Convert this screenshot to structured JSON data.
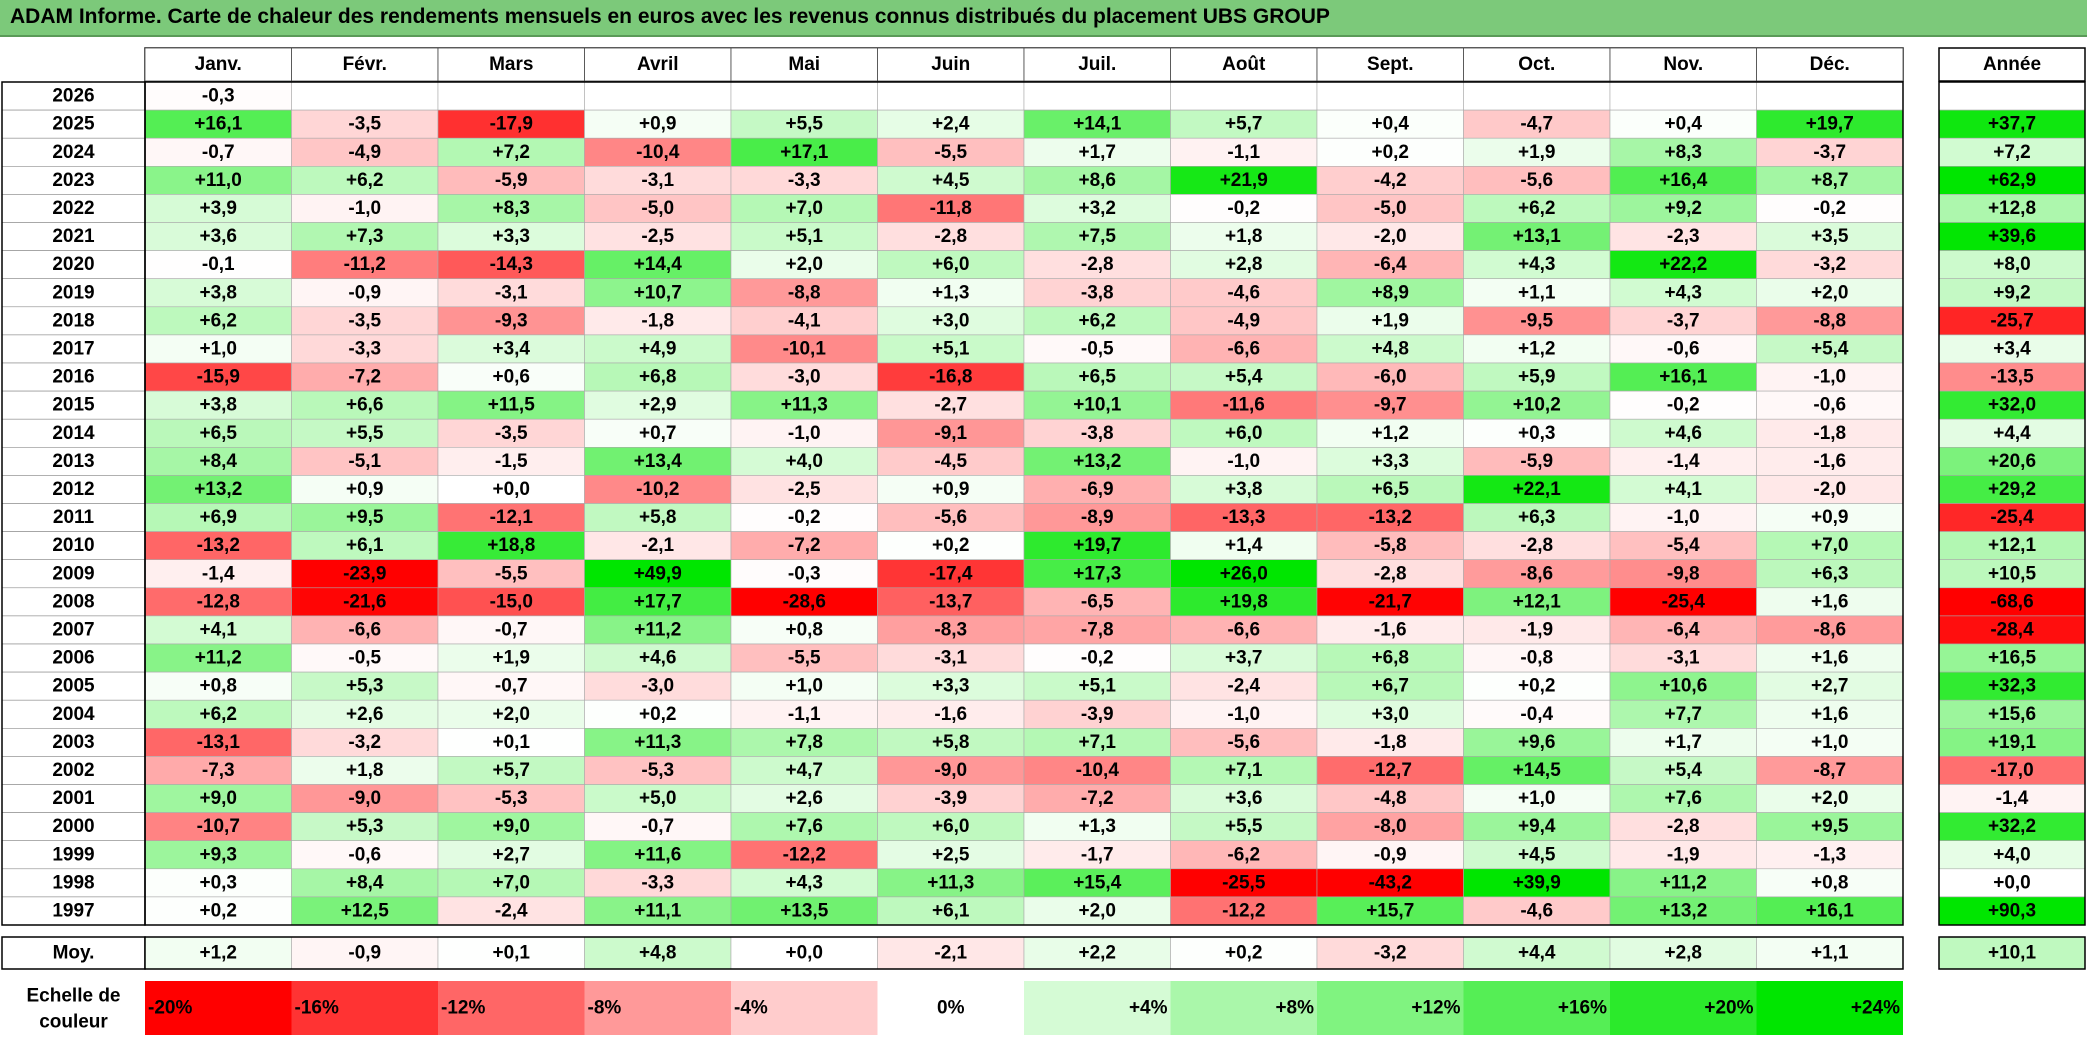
{
  "title": "ADAM Informe. Carte de chaleur des rendements mensuels en euros avec les revenus connus distribués du placement UBS GROUP",
  "colors": {
    "negative": "#ff0000",
    "neutral": "#ffffff",
    "positive": "#00e600",
    "title_bg": "#7cc97a"
  },
  "chart_data": {
    "type": "heatmap",
    "months": [
      "Janv.",
      "Févr.",
      "Mars",
      "Avril",
      "Mai",
      "Juin",
      "Juil.",
      "Août",
      "Sept.",
      "Oct.",
      "Nov.",
      "Déc."
    ],
    "year_header": "Année",
    "avg_label": "Moy.",
    "scale_label_line1": "Echelle de",
    "scale_label_line2": "couleur",
    "rows": [
      {
        "year": "2026",
        "m": [
          "-0,3",
          "",
          "",
          "",
          "",
          "",
          "",
          "",
          "",
          "",
          "",
          ""
        ],
        "y": ""
      },
      {
        "year": "2025",
        "m": [
          "+16,1",
          "-3,5",
          "-17,9",
          "+0,9",
          "+5,5",
          "+2,4",
          "+14,1",
          "+5,7",
          "+0,4",
          "-4,7",
          "+0,4",
          "+19,7"
        ],
        "y": "+37,7"
      },
      {
        "year": "2024",
        "m": [
          "-0,7",
          "-4,9",
          "+7,2",
          "-10,4",
          "+17,1",
          "-5,5",
          "+1,7",
          "-1,1",
          "+0,2",
          "+1,9",
          "+8,3",
          "-3,7"
        ],
        "y": "+7,2"
      },
      {
        "year": "2023",
        "m": [
          "+11,0",
          "+6,2",
          "-5,9",
          "-3,1",
          "-3,3",
          "+4,5",
          "+8,6",
          "+21,9",
          "-4,2",
          "-5,6",
          "+16,4",
          "+8,7"
        ],
        "y": "+62,9"
      },
      {
        "year": "2022",
        "m": [
          "+3,9",
          "-1,0",
          "+8,3",
          "-5,0",
          "+7,0",
          "-11,8",
          "+3,2",
          "-0,2",
          "-5,0",
          "+6,2",
          "+9,2",
          "-0,2"
        ],
        "y": "+12,8"
      },
      {
        "year": "2021",
        "m": [
          "+3,6",
          "+7,3",
          "+3,3",
          "-2,5",
          "+5,1",
          "-2,8",
          "+7,5",
          "+1,8",
          "-2,0",
          "+13,1",
          "-2,3",
          "+3,5"
        ],
        "y": "+39,6"
      },
      {
        "year": "2020",
        "m": [
          "-0,1",
          "-11,2",
          "-14,3",
          "+14,4",
          "+2,0",
          "+6,0",
          "-2,8",
          "+2,8",
          "-6,4",
          "+4,3",
          "+22,2",
          "-3,2"
        ],
        "y": "+8,0"
      },
      {
        "year": "2019",
        "m": [
          "+3,8",
          "-0,9",
          "-3,1",
          "+10,7",
          "-8,8",
          "+1,3",
          "-3,8",
          "-4,6",
          "+8,9",
          "+1,1",
          "+4,3",
          "+2,0"
        ],
        "y": "+9,2"
      },
      {
        "year": "2018",
        "m": [
          "+6,2",
          "-3,5",
          "-9,3",
          "-1,8",
          "-4,1",
          "+3,0",
          "+6,2",
          "-4,9",
          "+1,9",
          "-9,5",
          "-3,7",
          "-8,8"
        ],
        "y": "-25,7"
      },
      {
        "year": "2017",
        "m": [
          "+1,0",
          "-3,3",
          "+3,4",
          "+4,9",
          "-10,1",
          "+5,1",
          "-0,5",
          "-6,6",
          "+4,8",
          "+1,2",
          "-0,6",
          "+5,4"
        ],
        "y": "+3,4"
      },
      {
        "year": "2016",
        "m": [
          "-15,9",
          "-7,2",
          "+0,6",
          "+6,8",
          "-3,0",
          "-16,8",
          "+6,5",
          "+5,4",
          "-6,0",
          "+5,9",
          "+16,1",
          "-1,0"
        ],
        "y": "-13,5"
      },
      {
        "year": "2015",
        "m": [
          "+3,8",
          "+6,6",
          "+11,5",
          "+2,9",
          "+11,3",
          "-2,7",
          "+10,1",
          "-11,6",
          "-9,7",
          "+10,2",
          "-0,2",
          "-0,6"
        ],
        "y": "+32,0"
      },
      {
        "year": "2014",
        "m": [
          "+6,5",
          "+5,5",
          "-3,5",
          "+0,7",
          "-1,0",
          "-9,1",
          "-3,8",
          "+6,0",
          "+1,2",
          "+0,3",
          "+4,6",
          "-1,8"
        ],
        "y": "+4,4"
      },
      {
        "year": "2013",
        "m": [
          "+8,4",
          "-5,1",
          "-1,5",
          "+13,4",
          "+4,0",
          "-4,5",
          "+13,2",
          "-1,0",
          "+3,3",
          "-5,9",
          "-1,4",
          "-1,6"
        ],
        "y": "+20,6"
      },
      {
        "year": "2012",
        "m": [
          "+13,2",
          "+0,9",
          "+0,0",
          "-10,2",
          "-2,5",
          "+0,9",
          "-6,9",
          "+3,8",
          "+6,5",
          "+22,1",
          "+4,1",
          "-2,0"
        ],
        "y": "+29,2"
      },
      {
        "year": "2011",
        "m": [
          "+6,9",
          "+9,5",
          "-12,1",
          "+5,8",
          "-0,2",
          "-5,6",
          "-8,9",
          "-13,3",
          "-13,2",
          "+6,3",
          "-1,0",
          "+0,9"
        ],
        "y": "-25,4"
      },
      {
        "year": "2010",
        "m": [
          "-13,2",
          "+6,1",
          "+18,8",
          "-2,1",
          "-7,2",
          "+0,2",
          "+19,7",
          "+1,4",
          "-5,8",
          "-2,8",
          "-5,4",
          "+7,0"
        ],
        "y": "+12,1"
      },
      {
        "year": "2009",
        "m": [
          "-1,4",
          "-23,9",
          "-5,5",
          "+49,9",
          "-0,3",
          "-17,4",
          "+17,3",
          "+26,0",
          "-2,8",
          "-8,6",
          "-9,8",
          "+6,3"
        ],
        "y": "+10,5"
      },
      {
        "year": "2008",
        "m": [
          "-12,8",
          "-21,6",
          "-15,0",
          "+17,7",
          "-28,6",
          "-13,7",
          "-6,5",
          "+19,8",
          "-21,7",
          "+12,1",
          "-25,4",
          "+1,6"
        ],
        "y": "-68,6"
      },
      {
        "year": "2007",
        "m": [
          "+4,1",
          "-6,6",
          "-0,7",
          "+11,2",
          "+0,8",
          "-8,3",
          "-7,8",
          "-6,6",
          "-1,6",
          "-1,9",
          "-6,4",
          "-8,6"
        ],
        "y": "-28,4"
      },
      {
        "year": "2006",
        "m": [
          "+11,2",
          "-0,5",
          "+1,9",
          "+4,6",
          "-5,5",
          "-3,1",
          "-0,2",
          "+3,7",
          "+6,8",
          "-0,8",
          "-3,1",
          "+1,6"
        ],
        "y": "+16,5"
      },
      {
        "year": "2005",
        "m": [
          "+0,8",
          "+5,3",
          "-0,7",
          "-3,0",
          "+1,0",
          "+3,3",
          "+5,1",
          "-2,4",
          "+6,7",
          "+0,2",
          "+10,6",
          "+2,7"
        ],
        "y": "+32,3"
      },
      {
        "year": "2004",
        "m": [
          "+6,2",
          "+2,6",
          "+2,0",
          "+0,2",
          "-1,1",
          "-1,6",
          "-3,9",
          "-1,0",
          "+3,0",
          "-0,4",
          "+7,7",
          "+1,6"
        ],
        "y": "+15,6"
      },
      {
        "year": "2003",
        "m": [
          "-13,1",
          "-3,2",
          "+0,1",
          "+11,3",
          "+7,8",
          "+5,8",
          "+7,1",
          "-5,6",
          "-1,8",
          "+9,6",
          "+1,7",
          "+1,0"
        ],
        "y": "+19,1"
      },
      {
        "year": "2002",
        "m": [
          "-7,3",
          "+1,8",
          "+5,7",
          "-5,3",
          "+4,7",
          "-9,0",
          "-10,4",
          "+7,1",
          "-12,7",
          "+14,5",
          "+5,4",
          "-8,7"
        ],
        "y": "-17,0"
      },
      {
        "year": "2001",
        "m": [
          "+9,0",
          "-9,0",
          "-5,3",
          "+5,0",
          "+2,6",
          "-3,9",
          "-7,2",
          "+3,6",
          "-4,8",
          "+1,0",
          "+7,6",
          "+2,0"
        ],
        "y": "-1,4"
      },
      {
        "year": "2000",
        "m": [
          "-10,7",
          "+5,3",
          "+9,0",
          "-0,7",
          "+7,6",
          "+6,0",
          "+1,3",
          "+5,5",
          "-8,0",
          "+9,4",
          "-2,8",
          "+9,5"
        ],
        "y": "+32,2"
      },
      {
        "year": "1999",
        "m": [
          "+9,3",
          "-0,6",
          "+2,7",
          "+11,6",
          "-12,2",
          "+2,5",
          "-1,7",
          "-6,2",
          "-0,9",
          "+4,5",
          "-1,9",
          "-1,3"
        ],
        "y": "+4,0"
      },
      {
        "year": "1998",
        "m": [
          "+0,3",
          "+8,4",
          "+7,0",
          "-3,3",
          "+4,3",
          "+11,3",
          "+15,4",
          "-25,5",
          "-43,2",
          "+39,9",
          "+11,2",
          "+0,8"
        ],
        "y": "+0,0"
      },
      {
        "year": "1997",
        "m": [
          "+0,2",
          "+12,5",
          "-2,4",
          "+11,1",
          "+13,5",
          "+6,1",
          "+2,0",
          "-12,2",
          "+15,7",
          "-4,6",
          "+13,2",
          "+16,1"
        ],
        "y": "+90,3"
      }
    ],
    "avg": {
      "m": [
        "+1,2",
        "-0,9",
        "+0,1",
        "+4,8",
        "+0,0",
        "-2,1",
        "+2,2",
        "+0,2",
        "-3,2",
        "+4,4",
        "+2,8",
        "+1,1"
      ],
      "y": "+10,1"
    },
    "scale": [
      "-20%",
      "-16%",
      "-12%",
      "-8%",
      "-4%",
      "0%",
      "+4%",
      "+8%",
      "+12%",
      "+16%",
      "+20%",
      "+24%"
    ]
  }
}
